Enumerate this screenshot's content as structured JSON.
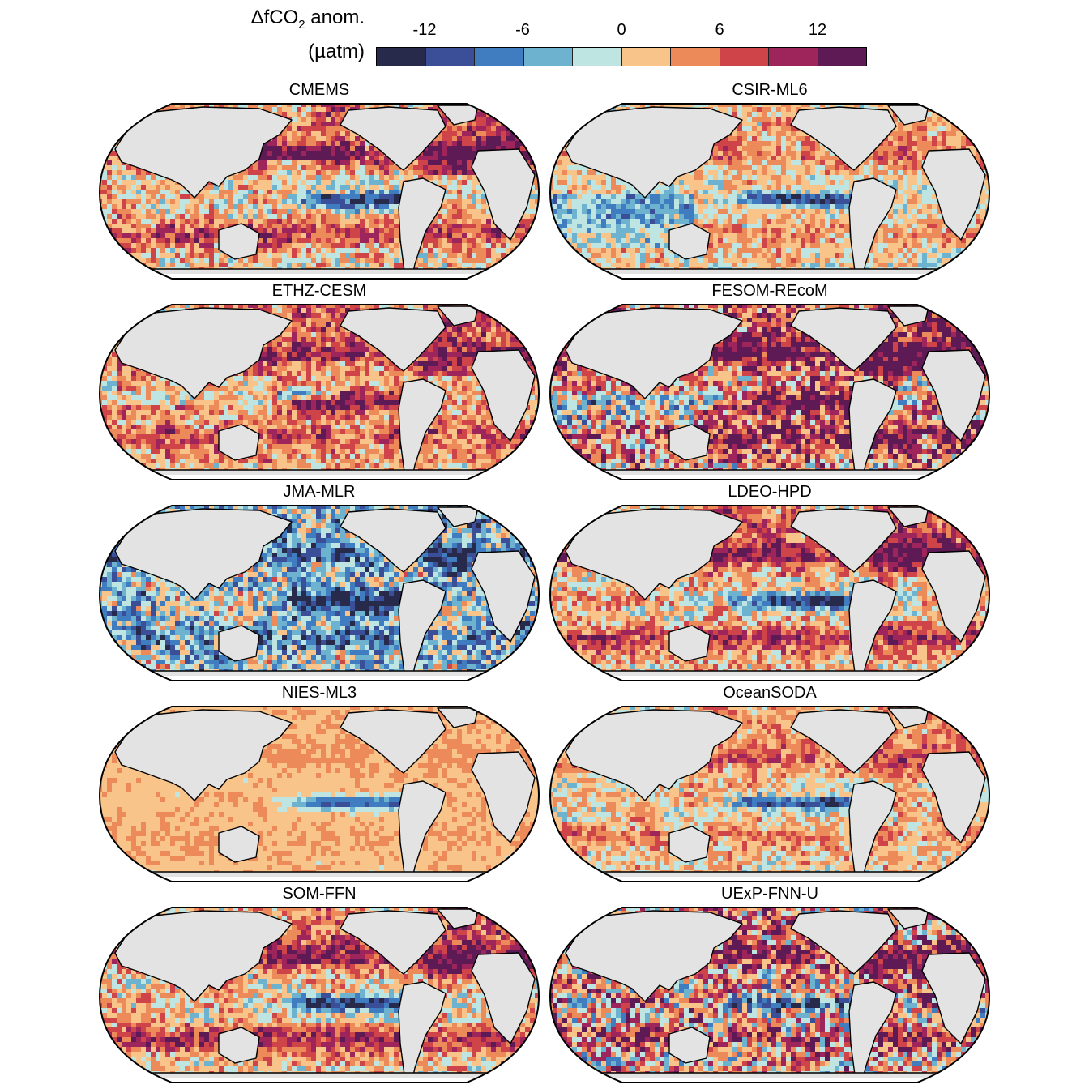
{
  "colorbar": {
    "title_line1": "ΔfCO",
    "title_sub": "2",
    "title_rest": " anom.",
    "title_line2": "(µatm)",
    "tick_labels": [
      "-12",
      "-6",
      "0",
      "6",
      "12"
    ],
    "tick_values": [
      -12,
      -6,
      0,
      6,
      12
    ],
    "range": [
      -15,
      15
    ],
    "colors": [
      "#272a4a",
      "#3b4f98",
      "#3f7cc0",
      "#6db3d0",
      "#bfe5e3",
      "#f8c48a",
      "#ec8a5a",
      "#cf4449",
      "#9e245c",
      "#5e1a54"
    ]
  },
  "map_colors": {
    "land": "#e3e3e3",
    "coast": "#000000"
  },
  "panels": [
    {
      "title": "CMEMS",
      "pattern": "strong-cold-tongue"
    },
    {
      "title": "CSIR-ML6",
      "pattern": "cold-tongue-blue-indian"
    },
    {
      "title": "ETHZ-CESM",
      "pattern": "warm-pacific-cold-core"
    },
    {
      "title": "FESOM-REcoM",
      "pattern": "warm-pacific-variable"
    },
    {
      "title": "JMA-MLR",
      "pattern": "cold-widespread"
    },
    {
      "title": "LDEO-HPD",
      "pattern": "strong-cold-tongue"
    },
    {
      "title": "NIES-ML3",
      "pattern": "smooth-weak"
    },
    {
      "title": "OceanSODA",
      "pattern": "moderate-cold-tongue"
    },
    {
      "title": "SOM-FFN",
      "pattern": "strong-cold-tongue"
    },
    {
      "title": "UExP-FNN-U",
      "pattern": "noisy-cold-tongue"
    }
  ]
}
